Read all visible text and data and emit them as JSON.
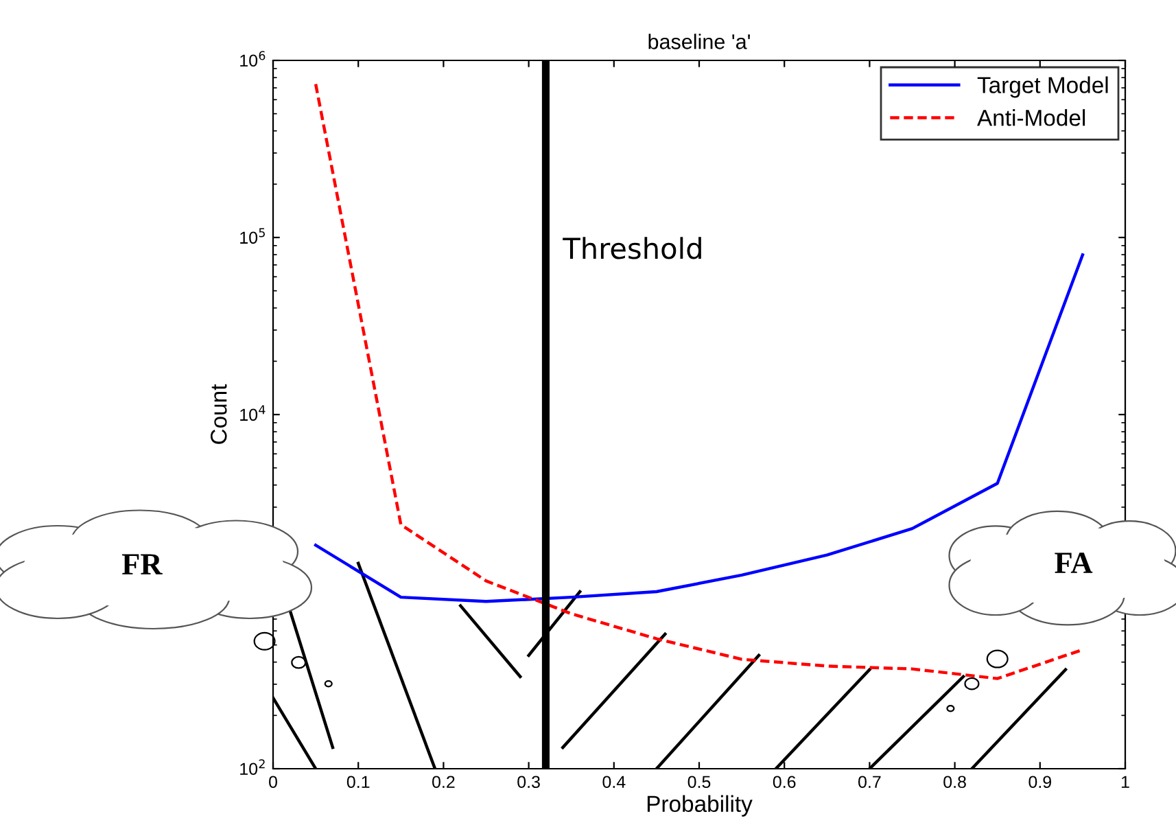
{
  "chart_data": {
    "type": "line",
    "title": "baseline 'a'",
    "xlabel": "Probability",
    "ylabel": "Count",
    "x": [
      0.05,
      0.15,
      0.25,
      0.35,
      0.45,
      0.55,
      0.65,
      0.75,
      0.85,
      0.95
    ],
    "series": [
      {
        "name": "Target Model",
        "color": "#0000ff",
        "line_style": "solid",
        "values": [
          1830,
          930,
          880,
          930,
          1000,
          1240,
          1610,
          2270,
          4090,
          79800
        ]
      },
      {
        "name": "Anti-Model",
        "color": "#ff0000",
        "line_style": "dashed",
        "values": [
          735000,
          2390,
          1150,
          750,
          542,
          415,
          380,
          366,
          323,
          470
        ]
      }
    ],
    "log": "y",
    "xlim": [
      0,
      1
    ],
    "ylim": [
      100,
      1000000
    ],
    "xticks": [
      0,
      0.1,
      0.2,
      0.3,
      0.4,
      0.5,
      0.6,
      0.7,
      0.8,
      0.9,
      1
    ],
    "yticks": [
      {
        "value": 100,
        "label": "10$^{2}$"
      },
      {
        "value": 10000,
        "label": "10$^{4}$"
      },
      {
        "value": 100000,
        "label": "10$^{5}$"
      },
      {
        "value": 1000000,
        "label": "10$^{6}$"
      }
    ],
    "ref_lines": [
      {
        "axis": "x",
        "value": 0.32,
        "label": "Threshold",
        "color": "#000000"
      }
    ],
    "annotations": [
      "FR",
      "FA"
    ],
    "legend": "top right",
    "grid": false,
    "marker": "none"
  }
}
